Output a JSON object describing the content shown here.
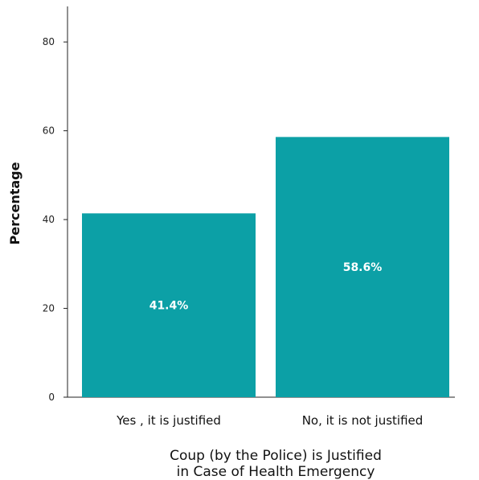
{
  "chart_data": {
    "type": "bar",
    "categories": [
      "Yes , it is justified",
      "No, it is not justified"
    ],
    "values": [
      41.4,
      58.6
    ],
    "data_labels": [
      "41.4%",
      "58.6%"
    ],
    "xlabel_lines": [
      "Coup (by the Police) is Justified",
      "in Case of Health Emergency"
    ],
    "ylabel": "Percentage",
    "ylim": [
      0,
      88
    ],
    "yticks": [
      0,
      20,
      40,
      60,
      80
    ],
    "grid": false,
    "bar_color": "#0ca0a6"
  }
}
